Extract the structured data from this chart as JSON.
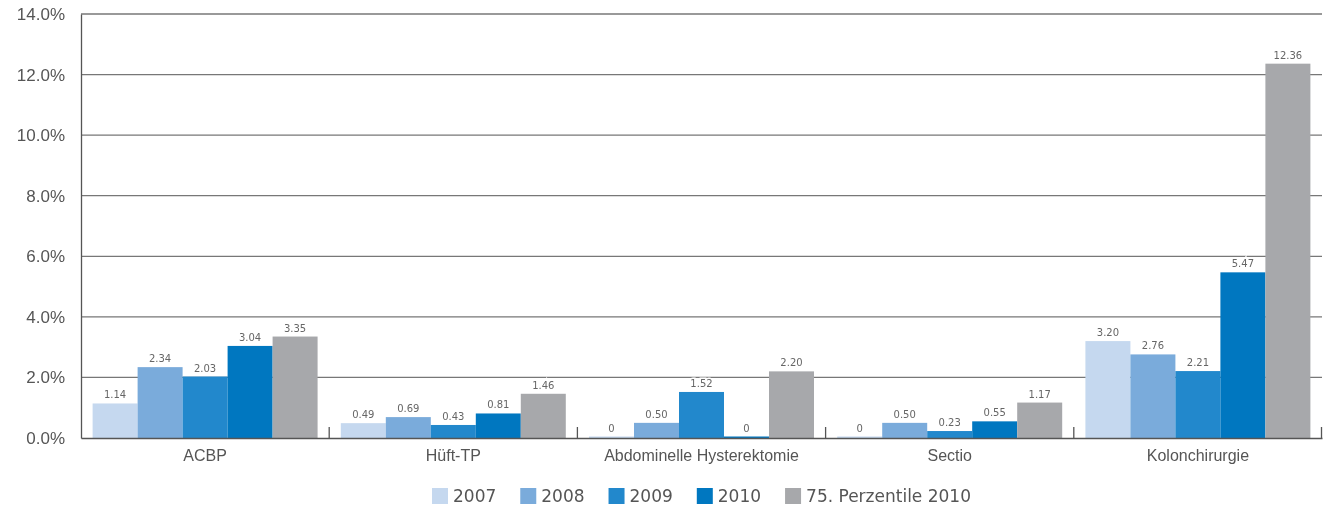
{
  "chart_data": {
    "type": "bar",
    "categories": [
      "ACBP",
      "Hüft-TP",
      "Abdominelle Hysterektomie",
      "Sectio",
      "Kolonchirurgie"
    ],
    "series": [
      {
        "name": "2007",
        "color": "#c5d8ef",
        "values": [
          1.14,
          0.49,
          0,
          0,
          3.2
        ],
        "value_labels": [
          "1.14",
          "0.49",
          "0",
          "0",
          "3.20"
        ]
      },
      {
        "name": "2008",
        "color": "#7aabdb",
        "values": [
          2.34,
          0.69,
          0.5,
          0.5,
          2.76
        ],
        "value_labels": [
          "2.34",
          "0.69",
          "0.50",
          "0.50",
          "2.76"
        ]
      },
      {
        "name": "2009",
        "color": "#2288cc",
        "values": [
          2.03,
          0.43,
          1.52,
          0.23,
          2.21
        ],
        "value_labels": [
          "2.03",
          "0.43",
          "1.52",
          "0.23",
          "2.21"
        ]
      },
      {
        "name": "2010",
        "color": "#0077c0",
        "values": [
          3.04,
          0.81,
          0,
          0.55,
          5.47
        ],
        "value_labels": [
          "3.04",
          "0.81",
          "0",
          "0.55",
          "5.47"
        ]
      },
      {
        "name": "75. Perzentile 2010",
        "color": "#a7a8ab",
        "values": [
          3.35,
          1.46,
          2.2,
          1.17,
          12.36
        ],
        "value_labels": [
          "3.35",
          "1.46",
          "2.20",
          "1.17",
          "12.36"
        ]
      }
    ],
    "ylim": [
      0,
      14
    ],
    "yticks": [
      {
        "value": 0,
        "label": "0.0%"
      },
      {
        "value": 2,
        "label": "2.0%"
      },
      {
        "value": 4,
        "label": "4.0%"
      },
      {
        "value": 6,
        "label": "6.0%"
      },
      {
        "value": 8,
        "label": "8.0%"
      },
      {
        "value": 10,
        "label": "10.0%"
      },
      {
        "value": 12,
        "label": "12.0%"
      },
      {
        "value": 14,
        "label": "14.0%"
      }
    ],
    "grid": "y",
    "legend": "bottom"
  }
}
